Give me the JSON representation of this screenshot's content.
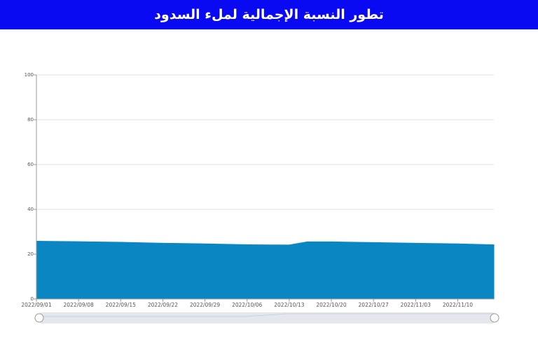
{
  "chart_data": {
    "type": "area",
    "title": "تطور النسبة الإجمالية لملء السدود",
    "x": [
      "2022/09/01",
      "2022/09/08",
      "2022/09/15",
      "2022/09/22",
      "2022/09/29",
      "2022/10/06",
      "2022/10/13",
      "2022/10/16",
      "2022/10/20",
      "2022/10/27",
      "2022/11/03",
      "2022/11/10",
      "2022/11/16"
    ],
    "values": [
      25.8,
      25.6,
      25.3,
      24.9,
      24.6,
      24.2,
      24.1,
      25.5,
      25.5,
      25.2,
      24.9,
      24.6,
      24.2
    ],
    "color": "#0a86c2",
    "xlim": [
      "2022/09/01",
      "2022/11/16"
    ],
    "xticks": [
      "2022/09/01",
      "2022/09/08",
      "2022/09/15",
      "2022/09/22",
      "2022/09/29",
      "2022/10/06",
      "2022/10/13",
      "2022/10/20",
      "2022/10/27",
      "2022/11/03",
      "2022/11/10"
    ],
    "ylim": [
      0,
      100
    ],
    "yticks": [
      0,
      20,
      40,
      60,
      80,
      100
    ],
    "grid": true
  }
}
